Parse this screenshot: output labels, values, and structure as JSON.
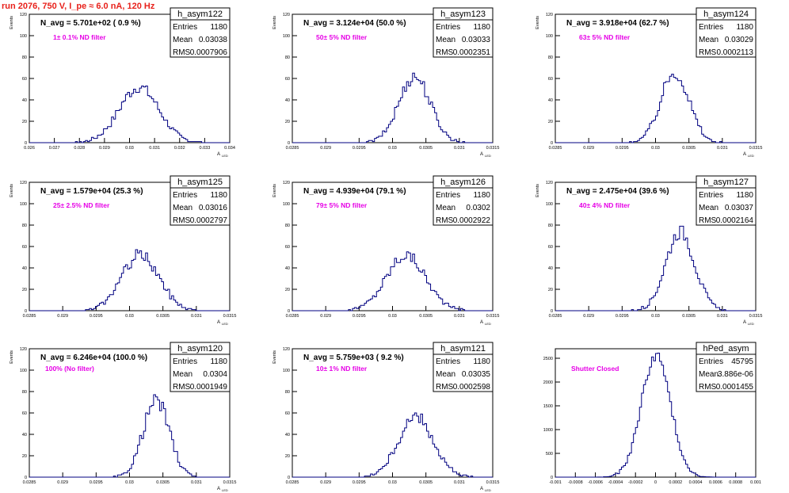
{
  "title": "run 2076,   750 V, I_pe ≈ 6.0 nA, 120 Hz",
  "colors": {
    "title": "#e8211b",
    "annotation": "#e600e6",
    "histogram": "#000080",
    "axis": "#000000"
  },
  "chart_data": [
    {
      "type": "histogram",
      "name": "h_asym122",
      "stats": {
        "entries_label": "Entries",
        "entries": "1180",
        "mean_label": "Mean",
        "mean": "0.03038",
        "rms_label": "RMS",
        "rms": "0.0007906"
      },
      "header": "N_avg = 5.701e+02 ( 0.9 %)",
      "annotation": "1± 0.1% ND filter",
      "xlabel": "A",
      "xlabel_sub": "LED",
      "ylabel": "Events",
      "xlim": [
        0.026,
        0.034
      ],
      "ylim": [
        0,
        120
      ],
      "xticks": [
        "0.026",
        "0.027",
        "0.028",
        "0.029",
        "0.03",
        "0.031",
        "0.032",
        "0.033",
        "0.034"
      ],
      "yticks": [
        "0",
        "20",
        "40",
        "60",
        "80",
        "100",
        "120"
      ],
      "mean": 0.03038,
      "sigma": 0.00079,
      "peak": 52,
      "nbins": 100
    },
    {
      "type": "histogram",
      "name": "h_asym123",
      "stats": {
        "entries_label": "Entries",
        "entries": "1180",
        "mean_label": "Mean",
        "mean": "0.03033",
        "rms_label": "RMS",
        "rms": "0.0002351"
      },
      "header": "N_avg = 3.124e+04 (50.0 %)",
      "annotation": "50± 5% ND filter",
      "xlabel": "A",
      "xlabel_sub": "LED",
      "ylabel": "Events",
      "xlim": [
        0.0285,
        0.0315
      ],
      "ylim": [
        0,
        120
      ],
      "xticks": [
        "0.0285",
        "0.029",
        "0.0295",
        "0.03",
        "0.0305",
        "0.031",
        "0.0315"
      ],
      "yticks": [
        "0",
        "20",
        "40",
        "60",
        "80",
        "100",
        "120"
      ],
      "mean": 0.03033,
      "sigma": 0.000235,
      "peak": 62,
      "nbins": 100
    },
    {
      "type": "histogram",
      "name": "h_asym124",
      "stats": {
        "entries_label": "Entries",
        "entries": "1180",
        "mean_label": "Mean",
        "mean": "0.03029",
        "rms_label": "RMS",
        "rms": "0.0002113"
      },
      "header": "N_avg = 3.918e+04 (62.7 %)",
      "annotation": "63± 5% ND filter",
      "xlabel": "A",
      "xlabel_sub": "LED",
      "ylabel": "Events",
      "xlim": [
        0.0285,
        0.0315
      ],
      "ylim": [
        0,
        120
      ],
      "xticks": [
        "0.0285",
        "0.029",
        "0.0295",
        "0.03",
        "0.0305",
        "0.031",
        "0.0315"
      ],
      "yticks": [
        "0",
        "20",
        "40",
        "60",
        "80",
        "100",
        "120"
      ],
      "mean": 0.03029,
      "sigma": 0.000211,
      "peak": 66,
      "nbins": 100
    },
    {
      "type": "histogram",
      "name": "h_asym125",
      "stats": {
        "entries_label": "Entries",
        "entries": "1180",
        "mean_label": "Mean",
        "mean": "0.03016",
        "rms_label": "RMS",
        "rms": "0.0002797"
      },
      "header": "N_avg = 1.579e+04 (25.3 %)",
      "annotation": "25± 2.5% ND filter",
      "xlabel": "A",
      "xlabel_sub": "LED",
      "ylabel": "Events",
      "xlim": [
        0.0285,
        0.0315
      ],
      "ylim": [
        0,
        120
      ],
      "xticks": [
        "0.0285",
        "0.029",
        "0.0295",
        "0.03",
        "0.0305",
        "0.031",
        "0.0315"
      ],
      "yticks": [
        "0",
        "20",
        "40",
        "60",
        "80",
        "100",
        "120"
      ],
      "mean": 0.03016,
      "sigma": 0.00028,
      "peak": 52,
      "nbins": 100
    },
    {
      "type": "histogram",
      "name": "h_asym126",
      "stats": {
        "entries_label": "Entries",
        "entries": "1180",
        "mean_label": "Mean",
        "mean": "0.0302",
        "rms_label": "RMS",
        "rms": "0.0002922"
      },
      "header": "N_avg = 4.939e+04 (79.1 %)",
      "annotation": "79± 5% ND filter",
      "xlabel": "A",
      "xlabel_sub": "LED",
      "ylabel": "Events",
      "xlim": [
        0.0285,
        0.0315
      ],
      "ylim": [
        0,
        120
      ],
      "xticks": [
        "0.0285",
        "0.029",
        "0.0295",
        "0.03",
        "0.0305",
        "0.031",
        "0.0315"
      ],
      "yticks": [
        "0",
        "20",
        "40",
        "60",
        "80",
        "100",
        "120"
      ],
      "mean": 0.0302,
      "sigma": 0.000292,
      "peak": 52,
      "nbins": 100
    },
    {
      "type": "histogram",
      "name": "h_asym127",
      "stats": {
        "entries_label": "Entries",
        "entries": "1180",
        "mean_label": "Mean",
        "mean": "0.03037",
        "rms_label": "RMS",
        "rms": "0.0002164"
      },
      "header": "N_avg = 2.475e+04 (39.6 %)",
      "annotation": "40± 4% ND filter",
      "xlabel": "A",
      "xlabel_sub": "LED",
      "ylabel": "Events",
      "xlim": [
        0.0285,
        0.0315
      ],
      "ylim": [
        0,
        120
      ],
      "xticks": [
        "0.0285",
        "0.029",
        "0.0295",
        "0.03",
        "0.0305",
        "0.031",
        "0.0315"
      ],
      "yticks": [
        "0",
        "20",
        "40",
        "60",
        "80",
        "100",
        "120"
      ],
      "mean": 0.03037,
      "sigma": 0.000216,
      "peak": 74,
      "nbins": 100
    },
    {
      "type": "histogram",
      "name": "h_asym120",
      "stats": {
        "entries_label": "Entries",
        "entries": "1180",
        "mean_label": "Mean",
        "mean": "0.0304",
        "rms_label": "RMS",
        "rms": "0.0001949"
      },
      "header": "N_avg = 6.246e+04 (100.0 %)",
      "annotation": "100% (No filter)",
      "xlabel": "A",
      "xlabel_sub": "LED",
      "ylabel": "Events",
      "xlim": [
        0.0285,
        0.0315
      ],
      "ylim": [
        0,
        120
      ],
      "xticks": [
        "0.0285",
        "0.029",
        "0.0295",
        "0.03",
        "0.0305",
        "0.031",
        "0.0315"
      ],
      "yticks": [
        "0",
        "20",
        "40",
        "60",
        "80",
        "100",
        "120"
      ],
      "mean": 0.0304,
      "sigma": 0.000195,
      "peak": 72,
      "nbins": 100
    },
    {
      "type": "histogram",
      "name": "h_asym121",
      "stats": {
        "entries_label": "Entries",
        "entries": "1180",
        "mean_label": "Mean",
        "mean": "0.03035",
        "rms_label": "RMS",
        "rms": "0.0002598"
      },
      "header": "N_avg = 5.759e+03 ( 9.2 %)",
      "annotation": "10± 1% ND filter",
      "xlabel": "A",
      "xlabel_sub": "LED",
      "ylabel": "Events",
      "xlim": [
        0.0285,
        0.0315
      ],
      "ylim": [
        0,
        120
      ],
      "xticks": [
        "0.0285",
        "0.029",
        "0.0295",
        "0.03",
        "0.0305",
        "0.031",
        "0.0315"
      ],
      "yticks": [
        "0",
        "20",
        "40",
        "60",
        "80",
        "100",
        "120"
      ],
      "mean": 0.03035,
      "sigma": 0.00026,
      "peak": 56,
      "nbins": 100
    },
    {
      "type": "histogram",
      "name": "hPed_asym",
      "stats": {
        "entries_label": "Entries",
        "entries": "45795",
        "mean_label": "Mean",
        "mean": "3.886e-06",
        "rms_label": "RMS",
        "rms": "0.0001455"
      },
      "header": "",
      "annotation": "Shutter Closed",
      "xlabel": "",
      "xlabel_sub": "",
      "ylabel": "",
      "xlim": [
        -0.001,
        0.001
      ],
      "ylim": [
        0,
        2700
      ],
      "xticks": [
        "-0.001",
        "-0.0008",
        "-0.0006",
        "-0.0004",
        "-0.0002",
        "0",
        "0.0002",
        "0.0004",
        "0.0006",
        "0.0008",
        "0.001"
      ],
      "yticks": [
        "0",
        "500",
        "1000",
        "1500",
        "2000",
        "2500"
      ],
      "mean": 3.9e-06,
      "sigma": 0.0001455,
      "peak": 2560,
      "nbins": 100
    }
  ]
}
